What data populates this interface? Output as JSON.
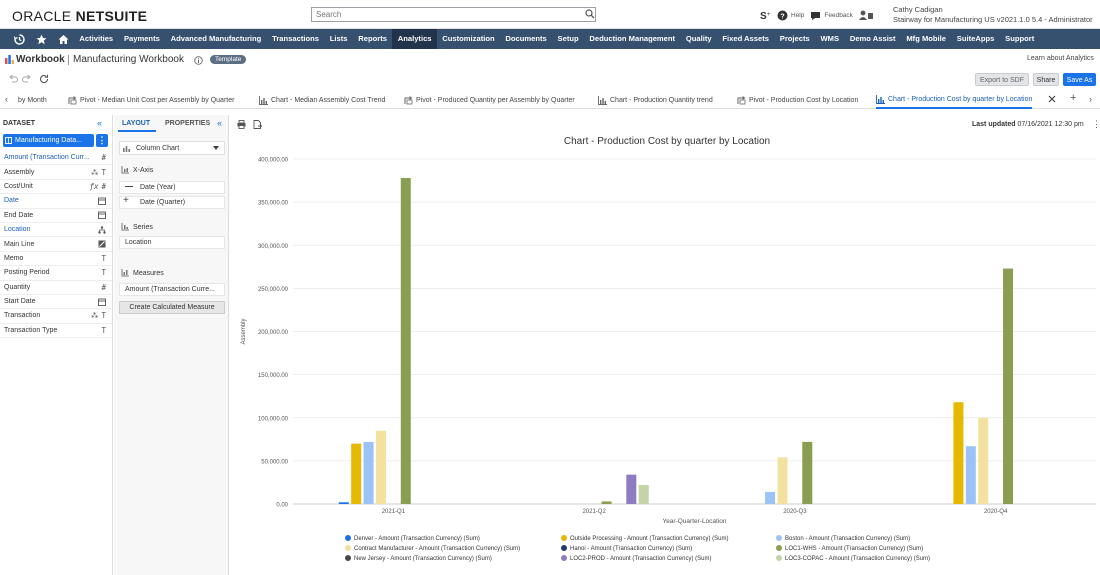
{
  "header": {
    "logo_a": "ORACLE",
    "logo_b": "NETSUITE",
    "search_placeholder": "Search",
    "help": "Help",
    "feedback": "Feedback",
    "user_name": "Cathy Cadigan",
    "user_role": "Stairway for Manufacturing US v2021.1.0 5.4 - Administrator"
  },
  "nav": {
    "items": [
      "Activities",
      "Payments",
      "Advanced Manufacturing",
      "Transactions",
      "Lists",
      "Reports",
      "Analytics",
      "Customization",
      "Documents",
      "Setup",
      "Deduction Management",
      "Quality",
      "Fixed Assets",
      "Projects",
      "WMS",
      "Demo Assist",
      "Mfg Mobile",
      "SuiteApps",
      "Support"
    ],
    "active": "Analytics"
  },
  "workbook": {
    "label": "Workbook",
    "name": "Manufacturing Workbook",
    "badge": "Template",
    "learn": "Learn about Analytics",
    "export_sdf": "Export to SDF",
    "share": "Share",
    "save_as": "Save As"
  },
  "tabs": [
    {
      "label": "by Month",
      "kind": "none"
    },
    {
      "label": "Pivot - Median Unit Cost per Assembly by Quarter",
      "kind": "pivot"
    },
    {
      "label": "Chart - Median Assembly Cost Trend",
      "kind": "chart"
    },
    {
      "label": "Pivot - Produced Quantity per Assembly by Quarter",
      "kind": "pivot"
    },
    {
      "label": "Chart - Production Quantity trend",
      "kind": "chart"
    },
    {
      "label": "Pivot - Production Cost by Location",
      "kind": "pivot"
    },
    {
      "label": "Chart - Production Cost by quarter by Location",
      "kind": "chart",
      "active": true
    }
  ],
  "dataset": {
    "header": "DATASET",
    "selected": "Manufacturing Data...",
    "fields": [
      {
        "label": "Amount (Transaction Curr...",
        "type": "#",
        "blue": true
      },
      {
        "label": "Assembly",
        "type": "T",
        "blue": false
      },
      {
        "label": "Cost/Unit",
        "type": "#",
        "blue": false
      },
      {
        "label": "Date",
        "type": "cal",
        "blue": true
      },
      {
        "label": "End Date",
        "type": "cal",
        "blue": false
      },
      {
        "label": "Location",
        "type": "tree",
        "blue": true
      },
      {
        "label": "Main Line",
        "type": "bool",
        "blue": false
      },
      {
        "label": "Memo",
        "type": "T",
        "blue": false
      },
      {
        "label": "Posting Period",
        "type": "T",
        "blue": false
      },
      {
        "label": "Quantity",
        "type": "#",
        "blue": false
      },
      {
        "label": "Start Date",
        "type": "cal",
        "blue": false
      },
      {
        "label": "Transaction",
        "type": "T",
        "blue": false
      },
      {
        "label": "Transaction Type",
        "type": "T",
        "blue": false
      }
    ]
  },
  "layout_panel": {
    "tab_layout": "LAYOUT",
    "tab_properties": "PROPERTIES",
    "chart_type": "Column Chart",
    "xaxis_label": "X-Axis",
    "xaxis_items": [
      "Date (Year)",
      "Date (Quarter)"
    ],
    "series_label": "Series",
    "series_item": "Location",
    "measures_label": "Measures",
    "measures_item": "Amount (Transaction Curre...",
    "calc_button": "Create Calculated Measure"
  },
  "chart_toolbar": {
    "last_updated_label": "Last updated",
    "last_updated_value": "07/16/2021 12:30 pm"
  },
  "chart_data": {
    "type": "bar",
    "title": "Chart - Production Cost by quarter by Location",
    "xlabel": "Year-Quarter-Location",
    "ylabel": "Assembly",
    "ylim": [
      0,
      400000
    ],
    "yticks": [
      0,
      50000,
      100000,
      150000,
      200000,
      250000,
      300000,
      350000,
      400000
    ],
    "ytick_labels": [
      "0.00",
      "50,000.00",
      "100,000.00",
      "150,000.00",
      "200,000.00",
      "250,000.00",
      "300,000.00",
      "350,000.00",
      "400,000.00"
    ],
    "categories": [
      "2021-Q1",
      "2021-Q2",
      "2020-Q3",
      "2020-Q4"
    ],
    "legend_position": "bottom",
    "series": [
      {
        "name": "Denver - Amount (Transaction Currency) (Sum)",
        "color": "#1a73e8",
        "values": [
          2000,
          0,
          0,
          0
        ]
      },
      {
        "name": "Outside Processing - Amount (Transaction Currency) (Sum)",
        "color": "#e6b800",
        "values": [
          70000,
          0,
          0,
          118000
        ]
      },
      {
        "name": "Boston - Amount (Transaction Currency) (Sum)",
        "color": "#9cc3f5",
        "values": [
          72000,
          0,
          14000,
          67000
        ]
      },
      {
        "name": "Contract Manufacturer - Amount (Transaction Currency) (Sum)",
        "color": "#f3e29f",
        "values": [
          85000,
          0,
          54000,
          100000
        ]
      },
      {
        "name": "Hanoi - Amount (Transaction Currency) (Sum)",
        "color": "#1f3a6e",
        "values": [
          0,
          0,
          0,
          0
        ]
      },
      {
        "name": "LOC1-WHS - Amount (Transaction Currency) (Sum)",
        "color": "#8a9e52",
        "values": [
          378000,
          3000,
          72000,
          273000
        ]
      },
      {
        "name": "New Jersey - Amount (Transaction Currency) (Sum)",
        "color": "#4a4a4a",
        "values": [
          0,
          0,
          0,
          0
        ]
      },
      {
        "name": "LOC2-PROD - Amount (Transaction Currency) (Sum)",
        "color": "#8e7cc3",
        "values": [
          0,
          34000,
          0,
          0
        ]
      },
      {
        "name": "LOC3-COPAC - Amount (Transaction Currency) (Sum)",
        "color": "#c5d3a8",
        "values": [
          0,
          22000,
          0,
          0
        ]
      }
    ]
  }
}
